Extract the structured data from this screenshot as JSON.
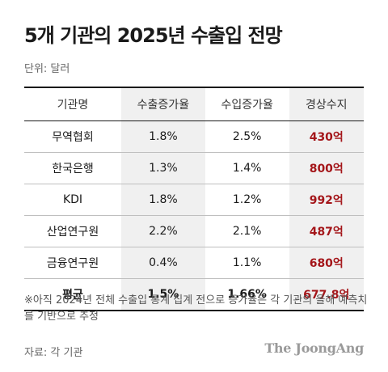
{
  "title": "5개 기관의 2025년 수출입 전망",
  "unit": "단위: 달러",
  "table": {
    "headers": [
      "기관명",
      "수출증가율",
      "수입증가율",
      "경상수지"
    ],
    "rows": [
      {
        "institution": "무역협회",
        "export_growth": "1.8%",
        "import_growth": "2.5%",
        "current_account": "430억"
      },
      {
        "institution": "한국은행",
        "export_growth": "1.3%",
        "import_growth": "1.4%",
        "current_account": "800억"
      },
      {
        "institution": "KDI",
        "export_growth": "1.8%",
        "import_growth": "1.2%",
        "current_account": "992억"
      },
      {
        "institution": "산업연구원",
        "export_growth": "2.2%",
        "import_growth": "2.1%",
        "current_account": "487억"
      },
      {
        "institution": "금융연구원",
        "export_growth": "0.4%",
        "import_growth": "1.1%",
        "current_account": "680억"
      }
    ],
    "average": {
      "institution": "평균",
      "export_growth": "1.5%",
      "import_growth": "1.66%",
      "current_account": "677.8억"
    }
  },
  "note": "※아직 2024년 전체 수출입 통계 집계 전으로 증가율은 각 기관의 올해 예측치를 기반으로 추정",
  "source": "자료: 각 기관",
  "logo": "The JoongAng",
  "colors": {
    "balance_text": "#a4161a",
    "shaded_column": "#f0f0f0"
  }
}
